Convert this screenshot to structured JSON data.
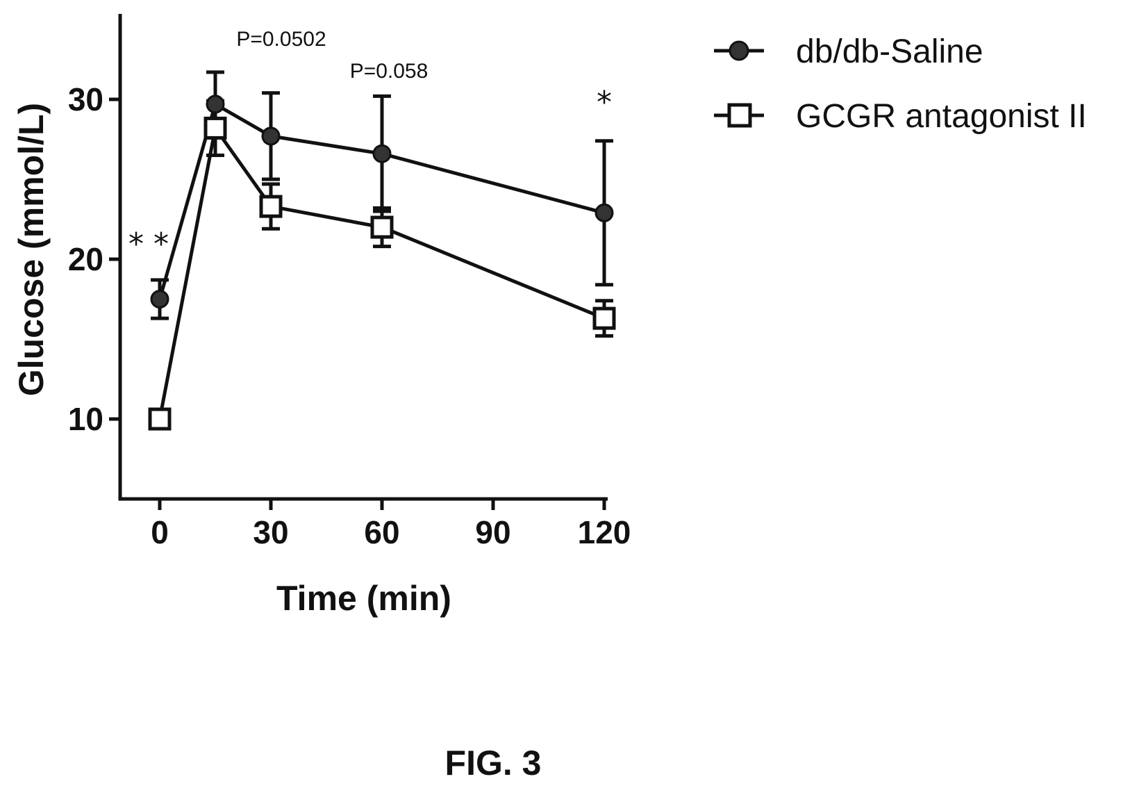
{
  "chart_data": {
    "type": "line",
    "xlabel": "Time (min)",
    "ylabel": "Glucose (mmol/L)",
    "xlim": [
      -12,
      125
    ],
    "ylim": [
      5,
      35
    ],
    "x_ticks": [
      0,
      30,
      60,
      90,
      120
    ],
    "y_ticks": [
      10,
      20,
      30
    ],
    "legend_position": "top-right",
    "series": [
      {
        "name": "db/db-Saline",
        "marker": "filled-circle",
        "color": "#333333",
        "points": [
          {
            "x": 0,
            "y": 17.5,
            "err": 1.2
          },
          {
            "x": 15,
            "y": 29.7,
            "err": 2.0
          },
          {
            "x": 30,
            "y": 27.7,
            "err": 2.7
          },
          {
            "x": 60,
            "y": 26.6,
            "err": 3.6
          },
          {
            "x": 120,
            "y": 22.9,
            "err": 4.5
          }
        ]
      },
      {
        "name": "GCGR antagonist II",
        "marker": "open-square",
        "color": "#ffffff",
        "points": [
          {
            "x": 0,
            "y": 10.0,
            "err": 0.5
          },
          {
            "x": 15,
            "y": 28.2,
            "err": 1.7
          },
          {
            "x": 30,
            "y": 23.3,
            "err": 1.4
          },
          {
            "x": 60,
            "y": 22.0,
            "err": 1.2
          },
          {
            "x": 120,
            "y": 16.3,
            "err": 1.1
          }
        ]
      }
    ],
    "annotations": [
      {
        "text": "P=0.0502",
        "x": 30
      },
      {
        "text": "P=0.058",
        "x": 60
      },
      {
        "text": "*",
        "x": 120
      },
      {
        "text": "* *",
        "x": 0
      }
    ]
  },
  "figure_label": "FIG. 3"
}
